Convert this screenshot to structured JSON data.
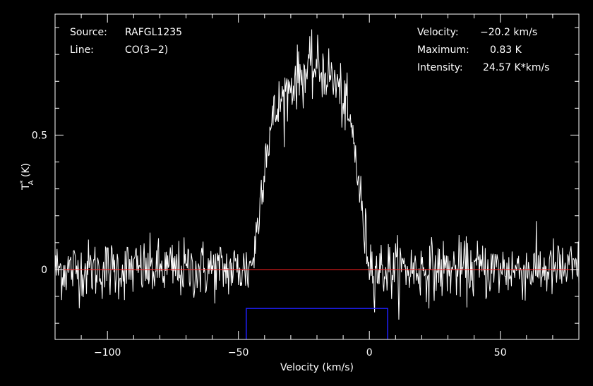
{
  "colors": {
    "background": "#000000",
    "axes": "#ffffff",
    "spectrum": "#ffffff",
    "baseline": "#ff2020",
    "window": "#2020ff"
  },
  "info_left": [
    {
      "label": "Source:",
      "value": "RAFGL1235"
    },
    {
      "label": "Line:",
      "value": "CO(3−2)"
    }
  ],
  "info_right": [
    {
      "label": "Velocity:",
      "value": "−20.2 km/s"
    },
    {
      "label": "Maximum:",
      "value": "0.83 K"
    },
    {
      "label": "Intensity:",
      "value": "24.57 K*km/s"
    }
  ],
  "chart_data": {
    "type": "line",
    "xlabel": "Velocity (km/s)",
    "ylabel_main": "T",
    "ylabel_sup": "*",
    "ylabel_sub": "A",
    "ylabel_unit": " (K)",
    "xlim": [
      -120,
      80
    ],
    "ylim": [
      -0.26,
      0.95
    ],
    "x_ticks": [
      -100,
      -50,
      0,
      50
    ],
    "x_tick_labels": [
      "−100",
      "−50",
      "0",
      "50"
    ],
    "y_ticks": [
      0,
      0.5
    ],
    "y_tick_labels": [
      "0",
      "0.5"
    ],
    "baseline_y": 0,
    "velocity_window": {
      "x_start": -47,
      "x_end": 7,
      "y_top": -0.145,
      "y_bottom": -0.26
    },
    "spectrum": {
      "x_start": -120,
      "x_end": 80,
      "n_points": 801,
      "noise_rms": 0.055,
      "line_center": -20.2,
      "line_peak": 0.75,
      "profile_points": [
        [
          -120,
          0
        ],
        [
          -46,
          0
        ],
        [
          -44,
          0.06
        ],
        [
          -42,
          0.22
        ],
        [
          -40,
          0.42
        ],
        [
          -37,
          0.55
        ],
        [
          -33,
          0.64
        ],
        [
          -28,
          0.71
        ],
        [
          -23,
          0.74
        ],
        [
          -20,
          0.75
        ],
        [
          -16,
          0.73
        ],
        [
          -12,
          0.68
        ],
        [
          -9,
          0.6
        ],
        [
          -6,
          0.48
        ],
        [
          -4,
          0.32
        ],
        [
          -2,
          0.14
        ],
        [
          0,
          0.04
        ],
        [
          2,
          0
        ],
        [
          80,
          0
        ]
      ]
    }
  }
}
